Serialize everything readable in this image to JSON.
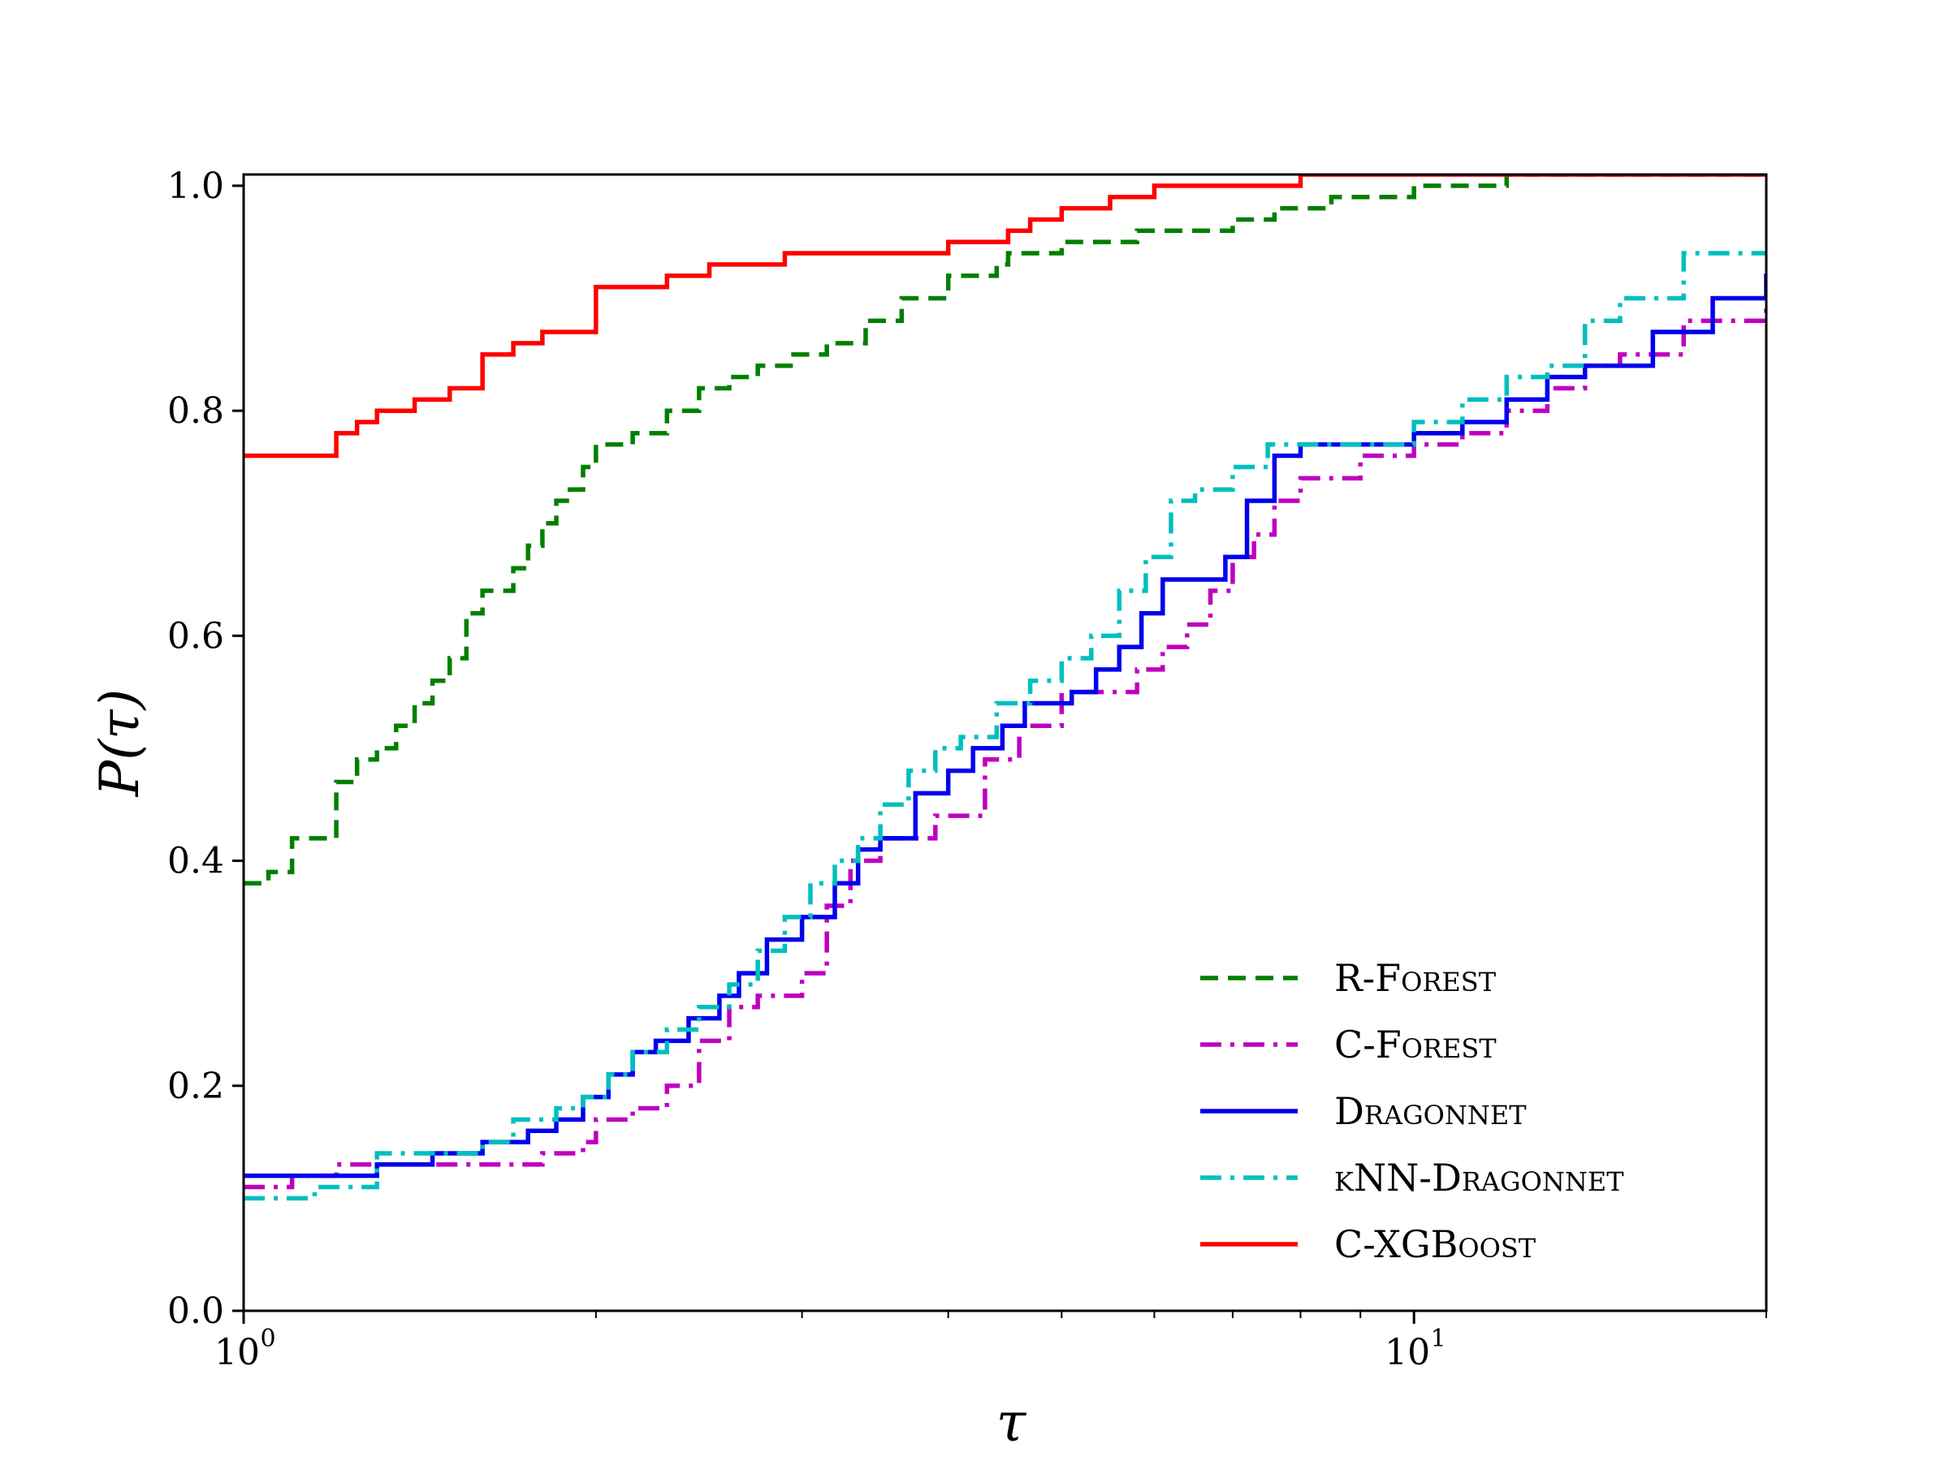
{
  "chart_data": {
    "type": "line",
    "subtype": "step",
    "xlabel": "τ",
    "ylabel": "P(τ)",
    "xscale": "log",
    "xlim": [
      1,
      20
    ],
    "ylim": [
      0,
      1.01
    ],
    "grid": false,
    "legend_position": "lower-right",
    "xticks": [
      {
        "value": 1,
        "label": "10",
        "exp": "0"
      },
      {
        "value": 10,
        "label": "10",
        "exp": "1"
      }
    ],
    "yticks": [
      {
        "value": 0.0,
        "label": "0.0"
      },
      {
        "value": 0.2,
        "label": "0.2"
      },
      {
        "value": 0.4,
        "label": "0.4"
      },
      {
        "value": 0.6,
        "label": "0.6"
      },
      {
        "value": 0.8,
        "label": "0.8"
      },
      {
        "value": 1.0,
        "label": "1.0"
      }
    ],
    "series": [
      {
        "name": "R-Forest",
        "color": "#007f00",
        "dash": "dashed",
        "x": [
          1.0,
          1.05,
          1.1,
          1.2,
          1.25,
          1.3,
          1.35,
          1.4,
          1.45,
          1.5,
          1.55,
          1.6,
          1.65,
          1.7,
          1.75,
          1.8,
          1.85,
          1.9,
          1.95,
          2.0,
          2.15,
          2.3,
          2.45,
          2.6,
          2.75,
          2.95,
          3.15,
          3.4,
          3.65,
          4.0,
          4.4,
          4.5,
          5.0,
          5.8,
          7.0,
          7.6,
          8.5,
          10.0,
          12.0,
          14.0
        ],
        "y": [
          0.38,
          0.39,
          0.42,
          0.47,
          0.49,
          0.5,
          0.52,
          0.54,
          0.56,
          0.58,
          0.62,
          0.64,
          0.64,
          0.66,
          0.68,
          0.7,
          0.72,
          0.73,
          0.75,
          0.77,
          0.78,
          0.8,
          0.82,
          0.83,
          0.84,
          0.85,
          0.86,
          0.88,
          0.9,
          0.92,
          0.93,
          0.94,
          0.95,
          0.96,
          0.97,
          0.98,
          0.99,
          1.0,
          1.01,
          1.01
        ]
      },
      {
        "name": "C-Forest",
        "color": "#bf00bf",
        "dash": "dashdot",
        "x": [
          1.0,
          1.1,
          1.2,
          1.35,
          1.5,
          1.8,
          1.95,
          2.0,
          2.15,
          2.3,
          2.45,
          2.6,
          2.75,
          3.0,
          3.15,
          3.3,
          3.5,
          3.9,
          4.3,
          4.6,
          5.0,
          5.5,
          5.8,
          6.1,
          6.4,
          6.7,
          7.0,
          7.3,
          7.6,
          8.0,
          9.0,
          10.0,
          11.0,
          12.0,
          13.0,
          14.0,
          15.0,
          17.0,
          20.0
        ],
        "y": [
          0.11,
          0.12,
          0.13,
          0.13,
          0.13,
          0.14,
          0.15,
          0.17,
          0.18,
          0.2,
          0.24,
          0.27,
          0.28,
          0.3,
          0.36,
          0.4,
          0.42,
          0.44,
          0.49,
          0.52,
          0.55,
          0.55,
          0.57,
          0.59,
          0.61,
          0.64,
          0.67,
          0.69,
          0.72,
          0.74,
          0.76,
          0.77,
          0.78,
          0.8,
          0.82,
          0.84,
          0.85,
          0.88,
          0.9
        ]
      },
      {
        "name": "Dragonnet",
        "color": "#0000ee",
        "dash": "solid",
        "x": [
          1.0,
          1.3,
          1.45,
          1.6,
          1.75,
          1.85,
          1.95,
          2.05,
          2.15,
          2.25,
          2.4,
          2.55,
          2.65,
          2.8,
          3.0,
          3.2,
          3.35,
          3.5,
          3.75,
          4.0,
          4.2,
          4.45,
          4.65,
          5.1,
          5.35,
          5.6,
          5.85,
          6.1,
          6.4,
          6.9,
          7.2,
          7.6,
          8.0,
          9.0,
          10.0,
          11.0,
          12.0,
          13.0,
          14.0,
          15.0,
          16.0,
          18.0,
          20.0
        ],
        "y": [
          0.12,
          0.13,
          0.14,
          0.15,
          0.16,
          0.17,
          0.19,
          0.21,
          0.23,
          0.24,
          0.26,
          0.28,
          0.3,
          0.33,
          0.35,
          0.38,
          0.41,
          0.42,
          0.46,
          0.48,
          0.5,
          0.52,
          0.54,
          0.55,
          0.57,
          0.59,
          0.62,
          0.65,
          0.65,
          0.67,
          0.72,
          0.76,
          0.77,
          0.77,
          0.78,
          0.79,
          0.81,
          0.83,
          0.84,
          0.84,
          0.87,
          0.9,
          0.92
        ]
      },
      {
        "name": "kNN-Dragonnet",
        "color": "#00bfbf",
        "dash": "dashdot",
        "x": [
          1.0,
          1.15,
          1.3,
          1.4,
          1.6,
          1.7,
          1.85,
          1.95,
          2.05,
          2.15,
          2.3,
          2.45,
          2.6,
          2.75,
          2.9,
          3.05,
          3.2,
          3.35,
          3.5,
          3.7,
          3.9,
          4.1,
          4.4,
          4.7,
          5.0,
          5.3,
          5.6,
          5.9,
          6.2,
          6.5,
          7.0,
          7.5,
          8.0,
          9.0,
          10.0,
          11.0,
          12.0,
          13.0,
          14.0,
          15.0,
          17.0,
          20.0
        ],
        "y": [
          0.1,
          0.11,
          0.14,
          0.14,
          0.15,
          0.17,
          0.18,
          0.19,
          0.21,
          0.23,
          0.25,
          0.27,
          0.29,
          0.32,
          0.35,
          0.38,
          0.4,
          0.42,
          0.45,
          0.48,
          0.5,
          0.51,
          0.54,
          0.56,
          0.58,
          0.6,
          0.64,
          0.67,
          0.72,
          0.73,
          0.75,
          0.77,
          0.77,
          0.77,
          0.79,
          0.81,
          0.83,
          0.84,
          0.88,
          0.9,
          0.94,
          0.94
        ]
      },
      {
        "name": "C-XGBoost",
        "color": "#ff0000",
        "dash": "solid",
        "x": [
          1.0,
          1.2,
          1.25,
          1.3,
          1.4,
          1.5,
          1.6,
          1.7,
          1.8,
          2.0,
          2.3,
          2.5,
          2.9,
          4.0,
          4.5,
          4.7,
          5.0,
          5.5,
          6.0,
          7.0,
          8.0,
          9.5
        ],
        "y": [
          0.76,
          0.78,
          0.79,
          0.8,
          0.81,
          0.82,
          0.85,
          0.86,
          0.87,
          0.91,
          0.92,
          0.93,
          0.94,
          0.95,
          0.96,
          0.97,
          0.98,
          0.99,
          1.0,
          1.0,
          1.01,
          1.01
        ]
      }
    ]
  }
}
